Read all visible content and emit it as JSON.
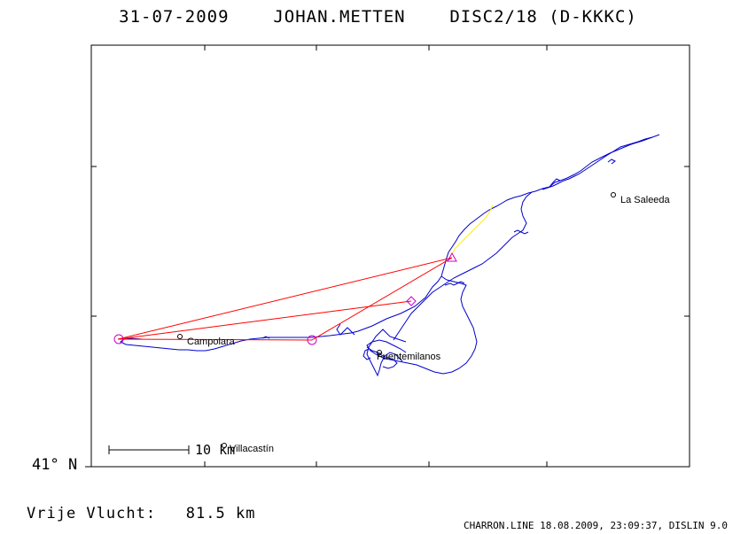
{
  "header": {
    "date": "31-07-2009",
    "pilot": "JOHAN.METTEN",
    "glider": "DISC2/18 (D-KKKC)"
  },
  "axis": {
    "lat_label": "41° N"
  },
  "scale_bar": {
    "label": "10 km"
  },
  "places": [
    {
      "name": "La Saleeda"
    },
    {
      "name": "Campolara"
    },
    {
      "name": "Fuentemilanos"
    },
    {
      "name": "Villacastín"
    }
  ],
  "summary": {
    "distance_label": "Vrije Vlucht:",
    "distance_value": "81.5 km"
  },
  "footer": {
    "text": "CHARRON.LINE 18.08.2009, 23:09:37, DISLIN 9.0"
  },
  "colors": {
    "track": "#0000cc",
    "task_line": "#ff0000",
    "turnpoint": "#cc00cc",
    "climb_segment": "#ffee00"
  }
}
